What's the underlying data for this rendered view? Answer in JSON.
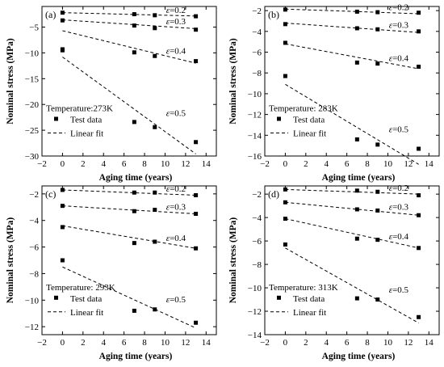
{
  "legend": {
    "test_label": "Test data",
    "fit_label": "Linear fit"
  },
  "chart_data": [
    {
      "type": "scatter",
      "panel_label": "(a)",
      "temperature": "Temperature:273K",
      "xlabel": "Aging time  (years)",
      "ylabel": "Nominal stress (MPa)",
      "xlim": [
        -2,
        15
      ],
      "ylim": [
        -30,
        -1
      ],
      "xticks": [
        -2,
        0,
        2,
        4,
        6,
        8,
        10,
        12,
        14
      ],
      "yticks": [
        -30,
        -25,
        -20,
        -15,
        -10,
        -5
      ],
      "series": [
        {
          "name": "ε=0.2",
          "x": [
            0,
            7,
            9,
            13
          ],
          "y": [
            -2.2,
            -2.5,
            -2.7,
            -2.9
          ],
          "fit": [
            -2.2,
            -2.85
          ]
        },
        {
          "name": "ε=0.3",
          "x": [
            0,
            7,
            9,
            13
          ],
          "y": [
            -3.7,
            -4.7,
            -5.2,
            -5.5
          ],
          "fit": [
            -3.6,
            -5.3
          ]
        },
        {
          "name": "ε=0.4",
          "x": [
            0,
            7,
            9,
            13
          ],
          "y": [
            -9.3,
            -9.9,
            -10.6,
            -11.6
          ],
          "fit": [
            -5.7,
            -12.0
          ]
        },
        {
          "name": "ε=0.5",
          "x": [
            0,
            7,
            9,
            13
          ],
          "y": [
            -9.5,
            -23.4,
            -24.4,
            -27.3
          ],
          "fit": [
            -10.8,
            -29.6
          ]
        }
      ]
    },
    {
      "type": "scatter",
      "panel_label": "(b)",
      "temperature": "Temperature: 283K",
      "xlabel": "Aging time  (years)",
      "ylabel": "Nominal stress (MPa)",
      "xlim": [
        -2,
        15
      ],
      "ylim": [
        -16,
        -1.6
      ],
      "xticks": [
        -2,
        0,
        2,
        4,
        6,
        8,
        10,
        12,
        14
      ],
      "yticks": [
        -16,
        -14,
        -12,
        -10,
        -8,
        -6,
        -4,
        -2
      ],
      "series": [
        {
          "name": "ε=0.2",
          "x": [
            0,
            7,
            9,
            13
          ],
          "y": [
            -1.9,
            -2.1,
            -2.15,
            -2.2
          ],
          "fit": [
            -1.85,
            -2.3
          ]
        },
        {
          "name": "ε=0.3",
          "x": [
            0,
            7,
            9,
            13
          ],
          "y": [
            -3.3,
            -3.7,
            -3.8,
            -4.0
          ],
          "fit": [
            -3.2,
            -4.1
          ]
        },
        {
          "name": "ε=0.4",
          "x": [
            0,
            7,
            9,
            13
          ],
          "y": [
            -5.1,
            -7.0,
            -7.1,
            -7.4
          ],
          "fit": [
            -5.2,
            -7.6
          ]
        },
        {
          "name": "ε=0.5",
          "x": [
            0,
            7,
            9,
            13
          ],
          "y": [
            -8.3,
            -14.4,
            -14.9,
            -15.3
          ],
          "fit": [
            -9.1,
            -16.8
          ]
        }
      ]
    },
    {
      "type": "scatter",
      "panel_label": "(c)",
      "temperature": "Temperature: 293K",
      "xlabel": "Aging time  (years)",
      "ylabel": "Nominal stress (MPa)",
      "xlim": [
        -2,
        15
      ],
      "ylim": [
        -12.6,
        -1.4
      ],
      "xticks": [
        -2,
        0,
        2,
        4,
        6,
        8,
        10,
        12,
        14
      ],
      "yticks": [
        -12,
        -10,
        -8,
        -6,
        -4,
        -2
      ],
      "series": [
        {
          "name": "ε=0.2",
          "x": [
            0,
            7,
            9,
            13
          ],
          "y": [
            -1.7,
            -1.9,
            -1.9,
            -2.1
          ],
          "fit": [
            -1.7,
            -2.1
          ]
        },
        {
          "name": "ε=0.3",
          "x": [
            0,
            7,
            9,
            13
          ],
          "y": [
            -2.9,
            -3.3,
            -3.2,
            -3.5
          ],
          "fit": [
            -2.9,
            -3.5
          ]
        },
        {
          "name": "ε=0.4",
          "x": [
            0,
            7,
            9,
            13
          ],
          "y": [
            -4.5,
            -5.7,
            -5.6,
            -6.1
          ],
          "fit": [
            -4.4,
            -6.1
          ]
        },
        {
          "name": "ε=0.5",
          "x": [
            0,
            7,
            9,
            13
          ],
          "y": [
            -7.0,
            -10.8,
            -10.7,
            -11.7
          ],
          "fit": [
            -7.5,
            -12.1
          ]
        }
      ]
    },
    {
      "type": "scatter",
      "panel_label": "(d)",
      "temperature": "Temperature: 313K",
      "xlabel": "Aging time  (years)",
      "ylabel": "Nominal stress (MPa)",
      "xlim": [
        -2,
        15
      ],
      "ylim": [
        -14,
        -1.3
      ],
      "xticks": [
        -2,
        0,
        2,
        4,
        6,
        8,
        10,
        12,
        14
      ],
      "yticks": [
        -14,
        -12,
        -10,
        -8,
        -6,
        -4,
        -2
      ],
      "series": [
        {
          "name": "ε=0.2",
          "x": [
            0,
            7,
            9,
            13
          ],
          "y": [
            -1.6,
            -1.7,
            -1.8,
            -2.1
          ],
          "fit": [
            -1.6,
            -2.0
          ]
        },
        {
          "name": "ε=0.3",
          "x": [
            0,
            7,
            9,
            13
          ],
          "y": [
            -2.7,
            -3.3,
            -3.4,
            -3.8
          ],
          "fit": [
            -2.7,
            -3.8
          ]
        },
        {
          "name": "ε=0.4",
          "x": [
            0,
            7,
            9,
            13
          ],
          "y": [
            -4.1,
            -5.8,
            -5.9,
            -6.6
          ],
          "fit": [
            -4.1,
            -6.6
          ]
        },
        {
          "name": "ε=0.5",
          "x": [
            0,
            7,
            9,
            13
          ],
          "y": [
            -6.3,
            -10.9,
            -11.0,
            -12.5
          ],
          "fit": [
            -6.6,
            -13.0
          ]
        }
      ]
    }
  ]
}
